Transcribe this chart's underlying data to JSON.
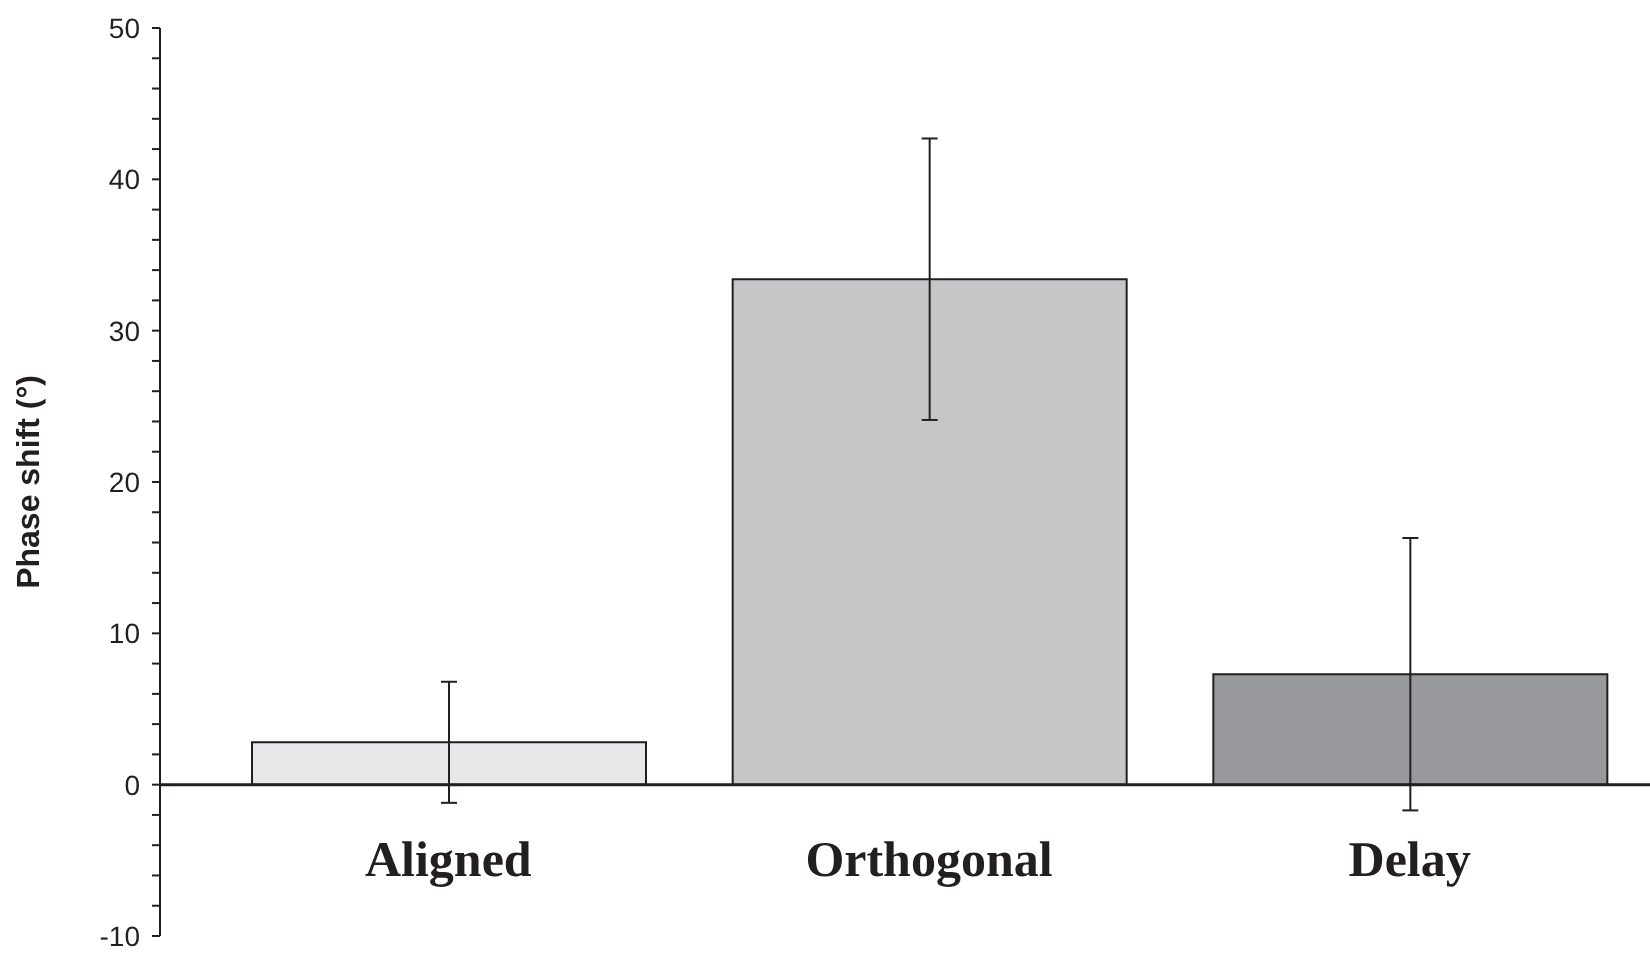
{
  "chart_data": {
    "type": "bar",
    "ylabel": "Phase shift (°)",
    "categories": [
      "Aligned",
      "Orthogonal",
      "Delay"
    ],
    "values": [
      2.8,
      33.4,
      7.3
    ],
    "errors": [
      4,
      9.3,
      9
    ],
    "colors": [
      "#e6e7e8",
      "#c5c6c8",
      "#98999c"
    ],
    "ylim": [
      -10,
      50
    ],
    "yticks": [
      -10,
      {
        "value": -8,
        "label": null
      },
      {
        "value": -6,
        "label": null
      },
      {
        "value": -4,
        "label": null
      },
      {
        "value": -2,
        "label": null
      },
      0,
      {
        "value": 2,
        "label": null
      },
      {
        "value": 4,
        "label": null
      },
      {
        "value": 6,
        "label": null
      },
      {
        "value": 8,
        "label": null
      },
      10,
      {
        "value": 12,
        "label": null
      },
      {
        "value": 14,
        "label": null
      },
      {
        "value": 16,
        "label": null
      },
      {
        "value": 18,
        "label": null
      },
      20,
      {
        "value": 22,
        "label": null
      },
      {
        "value": 24,
        "label": null
      },
      {
        "value": 26,
        "label": null
      },
      {
        "value": 28,
        "label": null
      },
      30,
      {
        "value": 32,
        "label": null
      },
      {
        "value": 34,
        "label": null
      },
      {
        "value": 36,
        "label": null
      },
      {
        "value": 38,
        "label": null
      },
      40,
      {
        "value": 42,
        "label": null
      },
      {
        "value": 44,
        "label": null
      },
      {
        "value": 46,
        "label": null
      },
      {
        "value": 48,
        "label": null
      },
      50
    ],
    "grid": false,
    "legend": false
  }
}
